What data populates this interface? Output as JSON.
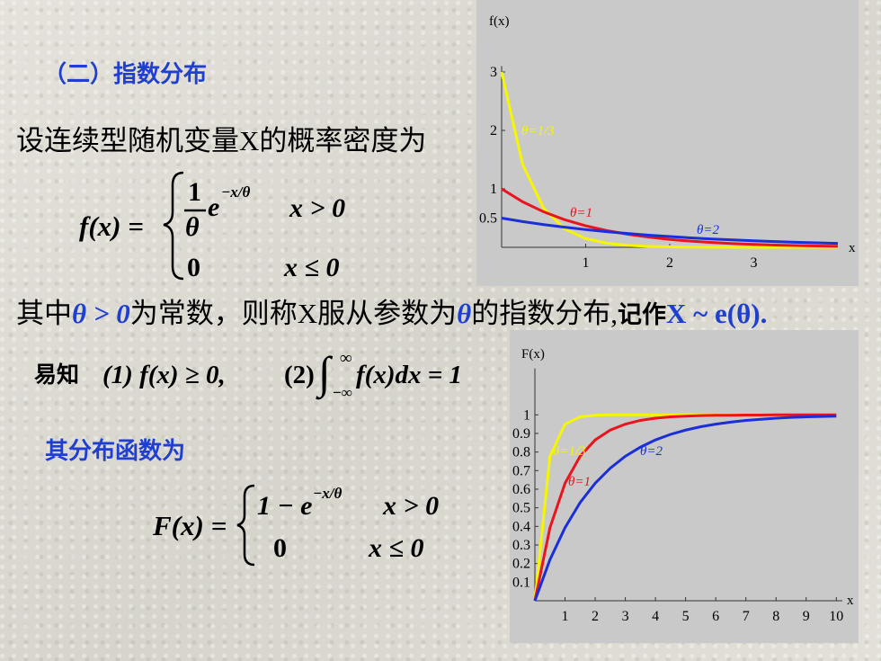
{
  "heading": "（二）指数分布",
  "intro": "设连续型随机变量X的概率密度为",
  "pdf_formula": {
    "lhs": "f(x) =",
    "numerator": "1",
    "denominator": "θ",
    "base": "e",
    "exponent": "−x/θ",
    "case1_cond": "x > 0",
    "case2_value": "0",
    "case2_cond": "x ≤ 0"
  },
  "statement": {
    "before": "其中",
    "condition": "θ > 0",
    "middle": "为常数，则称X服从参数为",
    "param": "θ",
    "after": "的指数分布,",
    "notation_label": "记作",
    "notation": "X ~ e(θ)."
  },
  "properties": {
    "label": "易知",
    "first": "(1) f(x) ≥ 0,",
    "second_index": "(2)",
    "integral": "∫",
    "upper": "∞",
    "lower": "−∞",
    "integrand": "f(x)dx = 1"
  },
  "cdf_heading": "其分布函数为",
  "cdf_formula": {
    "lhs": "F(x) =",
    "case1_value": "1 − e",
    "exponent": "−x/θ",
    "case1_cond": "x > 0",
    "case2_value": "0",
    "case2_cond": "x ≤ 0"
  },
  "chart_data": [
    {
      "type": "line",
      "y_label": "f(x)",
      "x_label": "x",
      "xlim": [
        0,
        4
      ],
      "ylim": [
        0,
        3.1
      ],
      "xticks": [
        1,
        2,
        3
      ],
      "yticks": [
        0.5,
        1,
        2,
        3
      ],
      "grid": false,
      "x": [
        0,
        0.25,
        0.5,
        0.75,
        1,
        1.25,
        1.5,
        1.75,
        2,
        2.25,
        2.5,
        2.75,
        3,
        3.25,
        3.5,
        3.75,
        4
      ],
      "series": [
        {
          "name": "θ=1/3",
          "color": "#f6f600",
          "values": [
            3,
            1.417,
            0.669,
            0.316,
            0.149,
            0.071,
            0.033,
            0.016,
            0.007,
            0.004,
            0.002,
            0.001,
            0.0004,
            0.0002,
            0.0001,
            0,
            0
          ]
        },
        {
          "name": "θ=1",
          "color": "#e8141e",
          "values": [
            1,
            0.779,
            0.607,
            0.472,
            0.368,
            0.287,
            0.223,
            0.174,
            0.135,
            0.105,
            0.082,
            0.064,
            0.05,
            0.039,
            0.03,
            0.024,
            0.018
          ]
        },
        {
          "name": "θ=2",
          "color": "#1a2fd9",
          "values": [
            0.5,
            0.441,
            0.389,
            0.344,
            0.303,
            0.268,
            0.236,
            0.208,
            0.184,
            0.162,
            0.143,
            0.126,
            0.112,
            0.098,
            0.087,
            0.077,
            0.068
          ]
        }
      ]
    },
    {
      "type": "line",
      "y_label": "F(x)",
      "x_label": "x",
      "xlim": [
        0,
        10.2
      ],
      "ylim": [
        0,
        1.25
      ],
      "xticks": [
        1,
        2,
        3,
        4,
        5,
        6,
        7,
        8,
        9,
        10
      ],
      "yticks": [
        0.1,
        0.2,
        0.3,
        0.4,
        0.5,
        0.6,
        0.7,
        0.8,
        0.9,
        1
      ],
      "grid": false,
      "x": [
        0,
        0.5,
        1,
        1.5,
        2,
        2.5,
        3,
        3.5,
        4,
        4.5,
        5,
        5.5,
        6,
        6.5,
        7,
        7.5,
        8,
        8.5,
        9,
        9.5,
        10
      ],
      "series": [
        {
          "name": "θ=1/3",
          "color": "#f6f600",
          "values": [
            0,
            0.777,
            0.95,
            0.989,
            0.998,
            1,
            1,
            1,
            1,
            1,
            1,
            1,
            1,
            1,
            1,
            1,
            1,
            1,
            1,
            1,
            1
          ]
        },
        {
          "name": "θ=1",
          "color": "#e8141e",
          "values": [
            0,
            0.393,
            0.632,
            0.777,
            0.865,
            0.918,
            0.95,
            0.97,
            0.982,
            0.989,
            0.993,
            0.996,
            0.998,
            0.998,
            0.999,
            0.999,
            1,
            1,
            1,
            1,
            1
          ]
        },
        {
          "name": "θ=2",
          "color": "#1a2fd9",
          "values": [
            0,
            0.221,
            0.393,
            0.528,
            0.632,
            0.713,
            0.777,
            0.826,
            0.865,
            0.895,
            0.918,
            0.936,
            0.95,
            0.961,
            0.97,
            0.976,
            0.982,
            0.986,
            0.989,
            0.991,
            0.993
          ]
        }
      ]
    }
  ]
}
